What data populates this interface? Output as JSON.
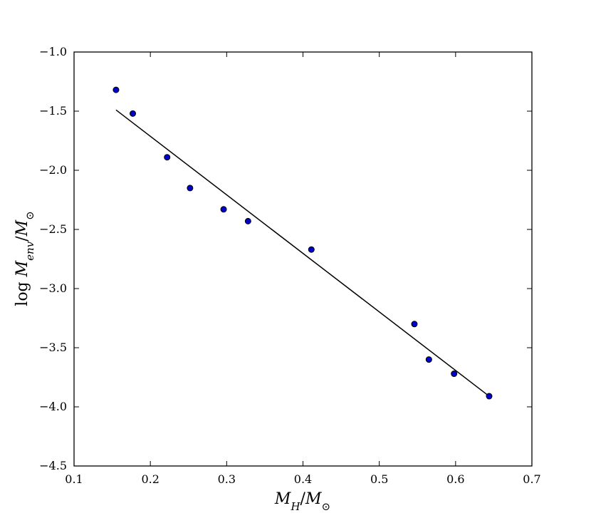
{
  "chart_data": {
    "type": "scatter",
    "xlabel": "M_H / M_⊙",
    "ylabel": "log M_env / M_⊙",
    "xlim": [
      0.1,
      0.7
    ],
    "ylim": [
      -4.5,
      -1.0
    ],
    "xticks": [
      "0.1",
      "0.2",
      "0.3",
      "0.4",
      "0.5",
      "0.6",
      "0.7"
    ],
    "yticks": [
      "−1.0",
      "−1.5",
      "−2.0",
      "−2.5",
      "−3.0",
      "−3.5",
      "−4.0",
      "−4.5"
    ],
    "grid": false,
    "legend": "none",
    "series": [
      {
        "type": "scatter",
        "marker_color": "#0000cc",
        "edge_color": "#000000",
        "points": [
          [
            0.155,
            -1.32
          ],
          [
            0.177,
            -1.52
          ],
          [
            0.222,
            -1.89
          ],
          [
            0.252,
            -2.15
          ],
          [
            0.296,
            -2.33
          ],
          [
            0.328,
            -2.43
          ],
          [
            0.411,
            -2.67
          ],
          [
            0.546,
            -3.3
          ],
          [
            0.565,
            -3.6
          ],
          [
            0.598,
            -3.72
          ],
          [
            0.644,
            -3.91
          ]
        ]
      },
      {
        "type": "line",
        "color": "#000000",
        "points": [
          [
            0.155,
            -1.49
          ],
          [
            0.644,
            -3.91
          ]
        ]
      }
    ]
  }
}
